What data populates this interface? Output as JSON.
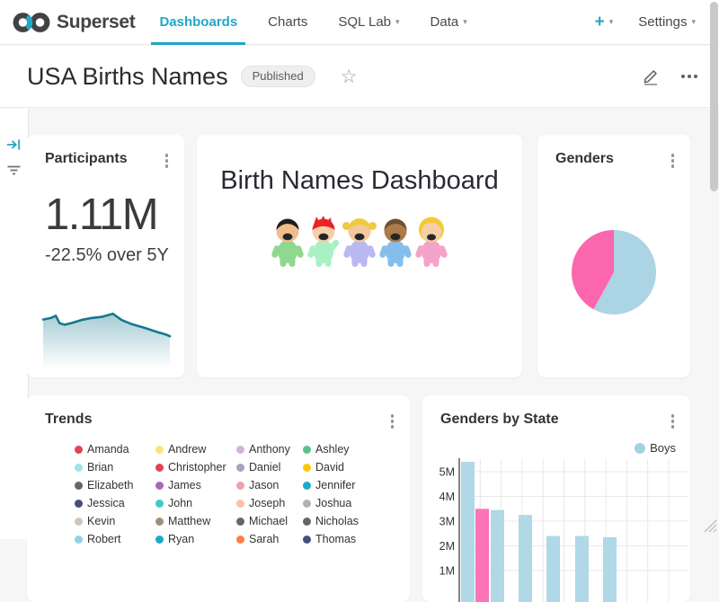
{
  "navbar": {
    "brand": "Superset",
    "links": [
      {
        "label": "Dashboards",
        "active": true,
        "caret": false
      },
      {
        "label": "Charts",
        "active": false,
        "caret": false
      },
      {
        "label": "SQL Lab",
        "active": false,
        "caret": true
      },
      {
        "label": "Data",
        "active": false,
        "caret": true
      }
    ],
    "new_button": "+",
    "settings": "Settings",
    "accent_color": "#20A7C9"
  },
  "header": {
    "title": "USA Births Names",
    "badge": "Published"
  },
  "participants": {
    "title": "Participants",
    "big_number": "1.11M",
    "subheader": "-22.5% over 5Y"
  },
  "markdown": {
    "heading": "Birth Names Dashboard",
    "kids": [
      {
        "body": "#8FD98F",
        "skin": "#EFBE8C",
        "hair": "#221D18",
        "style": "cap"
      },
      {
        "body": "#A9F0C5",
        "skin": "#F6CFA9",
        "hair": "#E8232B",
        "style": "spiky"
      },
      {
        "body": "#B9B8F0",
        "skin": "#F3C89D",
        "hair": "#EFC93F",
        "style": "pigtails"
      },
      {
        "body": "#85BEEB",
        "skin": "#AD7A4B",
        "hair": "#6E4F2F",
        "style": "cap"
      },
      {
        "body": "#F6A3C8",
        "skin": "#F6CFA9",
        "hair": "#F4C936",
        "style": "bob"
      }
    ]
  },
  "genders": {
    "title": "Genders"
  },
  "trends": {
    "title": "Trends",
    "legend": [
      {
        "name": "Amanda",
        "color": "#E04355"
      },
      {
        "name": "Andrew",
        "color": "#FDE380"
      },
      {
        "name": "Anthony",
        "color": "#D3B3DA"
      },
      {
        "name": "Ashley",
        "color": "#5AC189"
      },
      {
        "name": "Brian",
        "color": "#9EE5E5"
      },
      {
        "name": "Christopher",
        "color": "#E04355"
      },
      {
        "name": "Daniel",
        "color": "#A1A6BD"
      },
      {
        "name": "David",
        "color": "#FCC700"
      },
      {
        "name": "Elizabeth",
        "color": "#666666"
      },
      {
        "name": "James",
        "color": "#A868B7"
      },
      {
        "name": "Jason",
        "color": "#EFA1AA"
      },
      {
        "name": "Jennifer",
        "color": "#1FA8C9"
      },
      {
        "name": "Jessica",
        "color": "#454E7C"
      },
      {
        "name": "John",
        "color": "#3CCCCB"
      },
      {
        "name": "Joseph",
        "color": "#FEC0A1"
      },
      {
        "name": "Joshua",
        "color": "#B2B2B2"
      },
      {
        "name": "Kevin",
        "color": "#D1C6BC"
      },
      {
        "name": "Matthew",
        "color": "#A38F79"
      },
      {
        "name": "Michael",
        "color": "#666666"
      },
      {
        "name": "Nicholas",
        "color": "#666666"
      },
      {
        "name": "Robert",
        "color": "#8FD3E4"
      },
      {
        "name": "Ryan",
        "color": "#1FA8C9"
      },
      {
        "name": "Sarah",
        "color": "#FF7F44"
      },
      {
        "name": "Thomas",
        "color": "#454E7C"
      }
    ]
  },
  "genders_by_state": {
    "title": "Genders by State",
    "legend": [
      {
        "label": "Boys",
        "color": "#A4D2E3"
      }
    ]
  },
  "chart_data": [
    {
      "type": "area",
      "title": "Participants",
      "big_number": "1.11M",
      "subheader": "-22.5% over 5Y",
      "line_color": "#14798E",
      "x_normalized": [
        0,
        0.06,
        0.1,
        0.13,
        0.17,
        0.22,
        0.3,
        0.38,
        0.46,
        0.55,
        0.62,
        0.7,
        0.8,
        0.9,
        0.97,
        1
      ],
      "y_normalized_top0": [
        0.2,
        0.17,
        0.13,
        0.27,
        0.3,
        0.27,
        0.21,
        0.17,
        0.15,
        0.09,
        0.21,
        0.29,
        0.36,
        0.44,
        0.49,
        0.52
      ],
      "note": "sparkline under big number; overall declining trend"
    },
    {
      "type": "pie",
      "title": "Genders",
      "start_angle_deg": -90,
      "clockwise": true,
      "slices": [
        {
          "fraction": 0.58,
          "color": "#ABD5E4"
        },
        {
          "fraction": 0.42,
          "color": "#FC66AE"
        }
      ],
      "note": "no slice labels visible in viewport"
    },
    {
      "type": "line",
      "title": "Trends",
      "series_names": [
        "Amanda",
        "Andrew",
        "Anthony",
        "Ashley",
        "Brian",
        "Christopher",
        "Daniel",
        "David",
        "Elizabeth",
        "James",
        "Jason",
        "Jennifer",
        "Jessica",
        "John",
        "Joseph",
        "Joshua",
        "Kevin",
        "Matthew",
        "Michael",
        "Nicholas",
        "Robert",
        "Ryan",
        "Sarah",
        "Thomas"
      ],
      "note": "only the legend is visible; plot area is cut off below the viewport"
    },
    {
      "type": "bar",
      "title": "Genders by State",
      "legend": [
        "Boys"
      ],
      "y_tick_labels": [
        "3M",
        "4M",
        "5M"
      ],
      "values_millions": [
        5.4,
        3.5,
        3.45,
        3.25,
        2.4,
        2.4,
        2.35
      ],
      "bar_colors": [
        "#B0D8E7",
        "#FB74B8",
        "#B0D8E7",
        "#B0D8E7",
        "#B0D8E7",
        "#B0D8E7",
        "#B0D8E7"
      ],
      "grid": true,
      "note": "x-axis category labels cut off below viewport; tallest bar clipped near plot top"
    }
  ]
}
